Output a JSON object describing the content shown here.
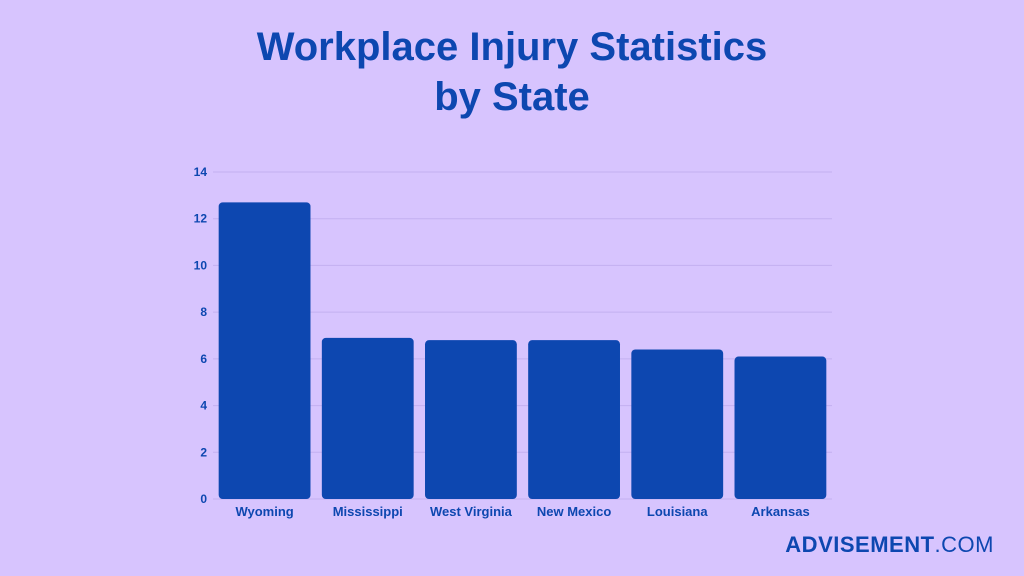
{
  "chart_data": {
    "type": "bar",
    "title_line1": "Workplace Injury Statistics",
    "title_line2": "by State",
    "categories": [
      "Wyoming",
      "Mississippi",
      "West Virginia",
      "New Mexico",
      "Louisiana",
      "Arkansas"
    ],
    "values": [
      12.7,
      6.9,
      6.8,
      6.8,
      6.4,
      6.1
    ],
    "ylim": [
      0,
      14
    ],
    "yticks": [
      0,
      2,
      4,
      6,
      8,
      10,
      12,
      14
    ],
    "grid": true,
    "colors": {
      "bar": "#0d47b0",
      "text": "#0d47b0",
      "grid": "#c3b0f0",
      "background": "#d7c4fe"
    }
  },
  "brand": {
    "part1": "ADVISEMENT",
    "part2": ".COM"
  }
}
